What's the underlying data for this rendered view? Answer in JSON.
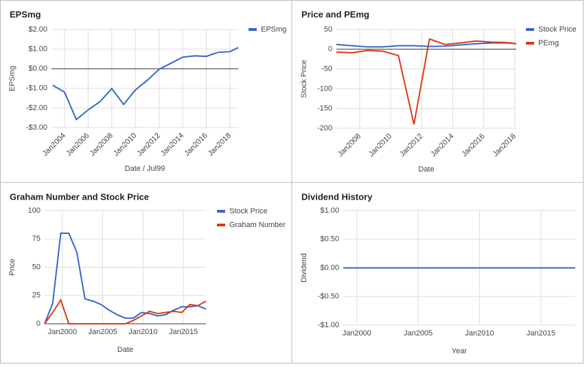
{
  "chart_data": [
    {
      "type": "line",
      "title": "EPSmg",
      "x_label": "Date / Jul99",
      "y_label": "EPSmg",
      "x": [
        2003,
        2004,
        2005,
        2006,
        2007,
        2008,
        2009,
        2010,
        2011,
        2012,
        2013,
        2014,
        2015,
        2016,
        2017,
        2018,
        2018.7
      ],
      "series": [
        {
          "name": "EPSmg",
          "color": "#3366cc",
          "values": [
            -0.84,
            -1.19,
            -2.59,
            -2.1,
            -1.68,
            -1.01,
            -1.82,
            -1.08,
            -0.59,
            -0.03,
            0.28,
            0.59,
            0.66,
            0.63,
            0.84,
            0.87,
            1.08
          ]
        }
      ],
      "xlim": [
        2002.9,
        2018.7
      ],
      "xticks": [
        {
          "value": 2004,
          "label": "Jan2004"
        },
        {
          "value": 2006,
          "label": "Jan2006"
        },
        {
          "value": 2008,
          "label": "Jan2008"
        },
        {
          "value": 2010,
          "label": "Jan2010"
        },
        {
          "value": 2012,
          "label": "Jan2012"
        },
        {
          "value": 2014,
          "label": "Jan2014"
        },
        {
          "value": 2016,
          "label": "Jan2016"
        },
        {
          "value": 2018,
          "label": "Jan2018"
        }
      ],
      "ylim": [
        -3,
        2
      ],
      "yticks": [
        {
          "value": 2,
          "label": "$2.00"
        },
        {
          "value": 1,
          "label": "$1.00"
        },
        {
          "value": 0,
          "label": "$0.00"
        },
        {
          "value": -1,
          "label": "-$1.00"
        },
        {
          "value": -2,
          "label": "-$2.00"
        },
        {
          "value": -3,
          "label": "-$3.00"
        }
      ],
      "grid": true,
      "legend": "right"
    },
    {
      "type": "line",
      "title": "Price and PEmg",
      "x_label": "Date",
      "y_label": "Stock Price",
      "x": [
        2006.5,
        2007.5,
        2008.5,
        2009.5,
        2010.5,
        2011.5,
        2012.5,
        2013.5,
        2014.5,
        2015.5,
        2016.5,
        2017.5,
        2018.1
      ],
      "series": [
        {
          "name": "Stock Price",
          "color": "#3366cc",
          "values": [
            12,
            9,
            6,
            6,
            9,
            9,
            7,
            8,
            11,
            14,
            16,
            16,
            14
          ]
        },
        {
          "name": "PEmg",
          "color": "#dc3912",
          "values": [
            -7,
            -9,
            -3,
            -5,
            -16,
            -190,
            26,
            12,
            16,
            21,
            18,
            17,
            14
          ]
        }
      ],
      "xlim": [
        2006.5,
        2018.1
      ],
      "xticks": [
        {
          "value": 2008,
          "label": "Jan2008"
        },
        {
          "value": 2010,
          "label": "Jan2010"
        },
        {
          "value": 2012,
          "label": "Jan2012"
        },
        {
          "value": 2014,
          "label": "Jan2014"
        },
        {
          "value": 2016,
          "label": "Jan2016"
        },
        {
          "value": 2018,
          "label": "Jan2018"
        }
      ],
      "ylim": [
        -200,
        50
      ],
      "yticks": [
        50,
        0,
        -50,
        -100,
        -150,
        -200
      ],
      "grid": true,
      "legend": "right"
    },
    {
      "type": "line",
      "title": "Graham Number and Stock Price",
      "x_label": "Date",
      "y_label": "Price",
      "x": [
        1997.8,
        1998.8,
        1999.8,
        2000.8,
        2001.8,
        2002.8,
        2003.8,
        2004.8,
        2005.8,
        2006.8,
        2007.8,
        2008.8,
        2009.8,
        2010.8,
        2011.8,
        2012.8,
        2013.8,
        2014.8,
        2015.8,
        2016.8,
        2017.8
      ],
      "series": [
        {
          "name": "Stock Price",
          "color": "#3366cc",
          "values": [
            0,
            18,
            80,
            80,
            63,
            22,
            20,
            17,
            12,
            8,
            5,
            5,
            10,
            9,
            7,
            8,
            12,
            15,
            15,
            16,
            13
          ]
        },
        {
          "name": "Graham Number",
          "color": "#dc3912",
          "values": [
            0,
            10,
            21,
            0,
            0,
            0,
            0,
            0,
            0,
            0,
            0,
            3,
            7,
            11,
            9,
            10,
            11,
            10,
            17,
            16,
            20
          ]
        }
      ],
      "xlim": [
        1997.8,
        2017.8
      ],
      "xticks": [
        {
          "value": 2000,
          "label": "Jan2000"
        },
        {
          "value": 2005,
          "label": "Jan2005"
        },
        {
          "value": 2010,
          "label": "Jan2010"
        },
        {
          "value": 2015,
          "label": "Jan2015"
        }
      ],
      "ylim": [
        0,
        100
      ],
      "yticks": [
        0,
        25,
        50,
        75,
        100
      ],
      "grid": true,
      "legend": "right"
    },
    {
      "type": "line",
      "title": "Dividend History",
      "x_label": "Year",
      "y_label": "Dividend",
      "x": [
        1998.9,
        1999.9,
        2000.9,
        2001.9,
        2002.9,
        2003.9,
        2004.9,
        2005.9,
        2006.9,
        2007.9,
        2008.9,
        2009.9,
        2010.9,
        2011.9,
        2012.9,
        2013.9,
        2014.9,
        2015.9,
        2016.9,
        2017.8
      ],
      "series": [
        {
          "color": "#3366cc",
          "values": [
            0,
            0,
            0,
            0,
            0,
            0,
            0,
            0,
            0,
            0,
            0,
            0,
            0,
            0,
            0,
            0,
            0,
            0,
            0,
            0
          ]
        }
      ],
      "xlim": [
        1998.9,
        2017.8
      ],
      "xticks": [
        {
          "value": 2000,
          "label": "Jan2000"
        },
        {
          "value": 2005,
          "label": "Jan2005"
        },
        {
          "value": 2010,
          "label": "Jan2010"
        },
        {
          "value": 2015,
          "label": "Jan2015"
        }
      ],
      "ylim": [
        -1,
        1
      ],
      "yticks": [
        {
          "value": 1,
          "label": "$1.00"
        },
        {
          "value": 0.5,
          "label": "$0.50"
        },
        {
          "value": 0,
          "label": "$0.00"
        },
        {
          "value": -0.5,
          "label": "-$0.50"
        },
        {
          "value": -1,
          "label": "-$1.00"
        }
      ],
      "grid": true
    }
  ]
}
